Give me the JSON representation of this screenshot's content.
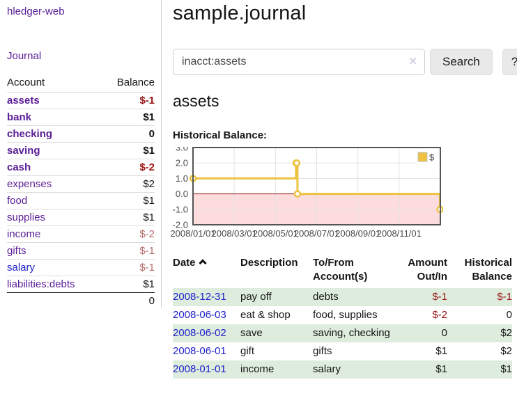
{
  "app": {
    "brand": "hledger-web"
  },
  "sidebar": {
    "journal_link": "Journal",
    "table": {
      "account_header": "Account",
      "balance_header": "Balance",
      "rows": [
        {
          "account": "assets",
          "balance": "$-1"
        },
        {
          "account": "bank",
          "balance": "$1"
        },
        {
          "account": "checking",
          "balance": "0"
        },
        {
          "account": "saving",
          "balance": "$1"
        },
        {
          "account": "cash",
          "balance": "$-2"
        },
        {
          "account": "expenses",
          "balance": "$2"
        },
        {
          "account": "food",
          "balance": "$1"
        },
        {
          "account": "supplies",
          "balance": "$1"
        },
        {
          "account": "income",
          "balance": "$-2"
        },
        {
          "account": "gifts",
          "balance": "$-1"
        },
        {
          "account": "salary",
          "balance": "$-1"
        },
        {
          "account": "liabilities:debts",
          "balance": "$1"
        }
      ],
      "total": "0"
    }
  },
  "main": {
    "title": "sample.journal",
    "search": {
      "value": "inacct:assets",
      "clear_icon": "✕",
      "search_button": "Search",
      "help_button": "?"
    },
    "account_heading": "assets",
    "chart_label": "Historical Balance:"
  },
  "chart_data": {
    "type": "line",
    "step": true,
    "title": "Historical Balance",
    "series": [
      {
        "name": "$",
        "color": "#EDC240",
        "points": [
          [
            "2008-01-01",
            1
          ],
          [
            "2008-06-01",
            2
          ],
          [
            "2008-06-02",
            2
          ],
          [
            "2008-06-03",
            0
          ],
          [
            "2008-12-31",
            -1
          ]
        ]
      }
    ],
    "ylim": [
      -2,
      3
    ],
    "yticks": [
      "3.0",
      "2.0",
      "1.0",
      "0.0",
      "-1.0",
      "-2.0"
    ],
    "xticks": [
      "2008/01/01",
      "2008/03/01",
      "2008/05/01",
      "2008/07/01",
      "2008/09/01",
      "2008/11/01"
    ],
    "xlim_months": [
      0,
      12
    ],
    "grid": true,
    "legend_position": "top-right",
    "negative_fill": "#fcdcdc",
    "zero_line_color": "#8b1010",
    "grid_color": "#e3e3e3",
    "border_color": "#545454",
    "tick_label_color": "#4a4a4a"
  },
  "register": {
    "headers": {
      "date": "Date",
      "sort_icon": "chevron-up",
      "description": "Description",
      "accounts": "To/From Account(s)",
      "amount": "Amount Out/In",
      "balance": "Historical Balance"
    },
    "rows": [
      {
        "date": "2008-12-31",
        "description": "pay off",
        "accounts": "debts",
        "amount": "$-1",
        "balance": "$-1"
      },
      {
        "date": "2008-06-03",
        "description": "eat & shop",
        "accounts": "food, supplies",
        "amount": "$-2",
        "balance": "0"
      },
      {
        "date": "2008-06-02",
        "description": "save",
        "accounts": "saving, checking",
        "amount": "0",
        "balance": "$2"
      },
      {
        "date": "2008-06-01",
        "description": "gift",
        "accounts": "gifts",
        "amount": "$1",
        "balance": "$2"
      },
      {
        "date": "2008-01-01",
        "description": "income",
        "accounts": "salary",
        "amount": "$1",
        "balance": "$1"
      }
    ]
  }
}
